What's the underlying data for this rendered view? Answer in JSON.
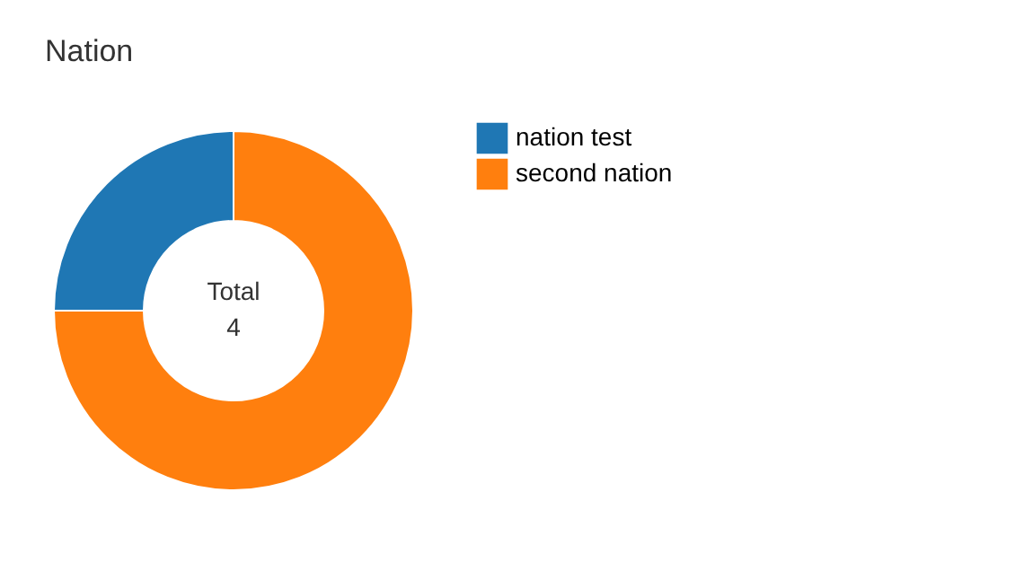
{
  "chart_data": {
    "type": "donut",
    "title": "Nation",
    "categories": [
      "nation test",
      "second nation"
    ],
    "values": [
      25,
      75
    ],
    "colors": [
      "#1f77b4",
      "#ff7f0e"
    ],
    "legend": "right",
    "annotations": [
      "Total",
      "4"
    ]
  }
}
